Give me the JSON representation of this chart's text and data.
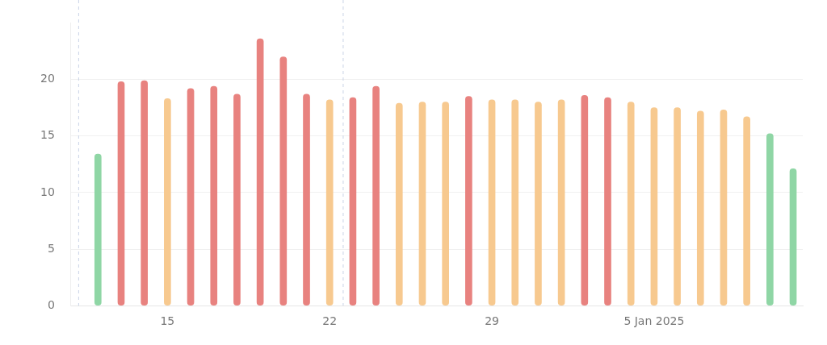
{
  "chart_data": {
    "type": "bar",
    "x": [
      "2024-12-12",
      "2024-12-13",
      "2024-12-14",
      "2024-12-15",
      "2024-12-16",
      "2024-12-17",
      "2024-12-18",
      "2024-12-19",
      "2024-12-20",
      "2024-12-21",
      "2024-12-22",
      "2024-12-23",
      "2024-12-24",
      "2024-12-25",
      "2024-12-26",
      "2024-12-27",
      "2024-12-28",
      "2024-12-29",
      "2024-12-30",
      "2024-12-31",
      "2025-01-01",
      "2025-01-02",
      "2025-01-03",
      "2025-01-04",
      "2025-01-05",
      "2025-01-06",
      "2025-01-07",
      "2025-01-08",
      "2025-01-09",
      "2025-01-10",
      "2025-01-11"
    ],
    "values": [
      13.4,
      19.8,
      19.9,
      18.3,
      19.2,
      19.4,
      18.7,
      23.6,
      22.0,
      18.7,
      18.2,
      18.4,
      19.4,
      17.9,
      18.0,
      18.0,
      18.5,
      18.2,
      18.2,
      18.0,
      18.2,
      18.6,
      18.4,
      18.0,
      17.5,
      17.5,
      17.2,
      17.3,
      16.7,
      15.2,
      12.1
    ],
    "colors": [
      "#8fd6a5",
      "#e8827f",
      "#e8827f",
      "#f7c98f",
      "#e8827f",
      "#e8827f",
      "#e8827f",
      "#e8827f",
      "#e8827f",
      "#e8827f",
      "#f7c98f",
      "#e8827f",
      "#e8827f",
      "#f7c98f",
      "#f7c98f",
      "#f7c98f",
      "#e8827f",
      "#f7c98f",
      "#f7c98f",
      "#f7c98f",
      "#f7c98f",
      "#e8827f",
      "#e8827f",
      "#f7c98f",
      "#f7c98f",
      "#f7c98f",
      "#f7c98f",
      "#f7c98f",
      "#f7c98f",
      "#8fd6a5",
      "#8fd6a5"
    ],
    "xlim": [
      "2024-12-10T20:00",
      "2025-01-11T10:00"
    ],
    "xticks": [
      {
        "value": "2024-12-15",
        "label": "15"
      },
      {
        "value": "2024-12-22",
        "label": "22"
      },
      {
        "value": "2024-12-29",
        "label": "29"
      },
      {
        "value": "2025-01-05",
        "label": "5 Jan 2025"
      }
    ],
    "ylim": [
      0,
      25
    ],
    "yticks": [
      0,
      5,
      10,
      15,
      20
    ],
    "grid": "y",
    "legend": false,
    "ref_lines": [
      {
        "axis": "x",
        "value": "2024-12-11T04:00",
        "color": "#c9d3e6",
        "line_style": "dashed"
      },
      {
        "axis": "x",
        "value": "2024-12-22T14:00",
        "color": "#c9d3e6",
        "line_style": "dashed"
      }
    ]
  }
}
